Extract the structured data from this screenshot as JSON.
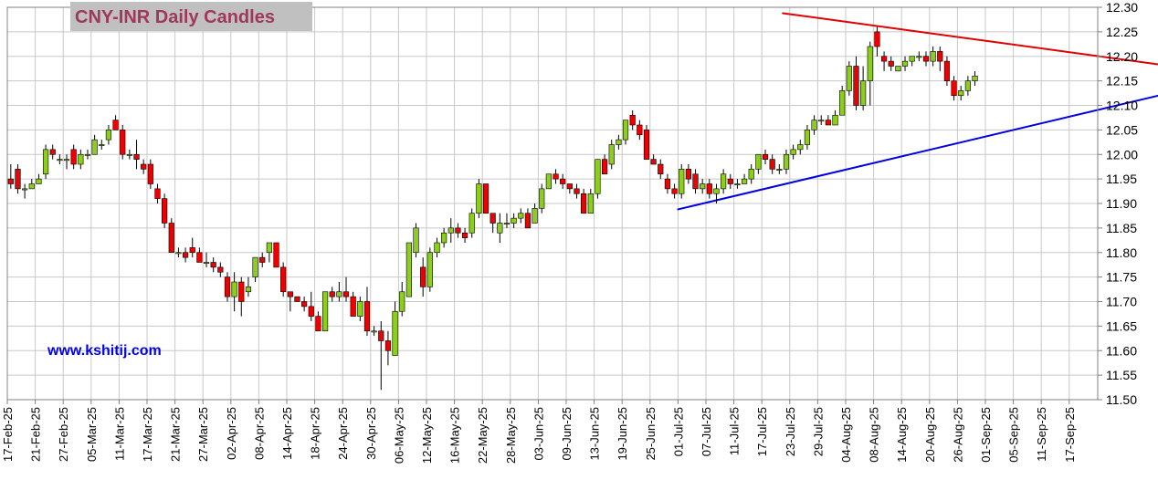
{
  "chart_data": {
    "type": "candlestick",
    "title": "CNY-INR Daily Candles",
    "watermark": "www.kshitij.com",
    "ylim": [
      11.5,
      12.3
    ],
    "y_ticks": [
      "11.50",
      "11.55",
      "11.60",
      "11.65",
      "11.70",
      "11.75",
      "11.80",
      "11.85",
      "11.90",
      "11.95",
      "12.00",
      "12.05",
      "12.10",
      "12.15",
      "12.20",
      "12.25",
      "12.30"
    ],
    "x_labels": [
      "17-Feb-25",
      "21-Feb-25",
      "27-Feb-25",
      "05-Mar-25",
      "11-Mar-25",
      "17-Mar-25",
      "21-Mar-25",
      "27-Mar-25",
      "02-Apr-25",
      "08-Apr-25",
      "14-Apr-25",
      "18-Apr-25",
      "24-Apr-25",
      "30-Apr-25",
      "06-May-25",
      "12-May-25",
      "16-May-25",
      "22-May-25",
      "28-May-25",
      "03-Jun-25",
      "09-Jun-25",
      "13-Jun-25",
      "19-Jun-25",
      "25-Jun-25",
      "01-Jul-25",
      "07-Jul-25",
      "11-Jul-25",
      "17-Jul-25",
      "23-Jul-25",
      "29-Jul-25",
      "04-Aug-25",
      "08-Aug-25",
      "14-Aug-25",
      "20-Aug-25",
      "26-Aug-25",
      "01-Sep-25",
      "05-Sep-25",
      "11-Sep-25",
      "17-Sep-25"
    ],
    "slots_per_label": 4,
    "candles": [
      [
        11.95,
        11.98,
        11.93,
        11.94
      ],
      [
        11.97,
        11.98,
        11.92,
        11.93
      ],
      [
        11.93,
        11.94,
        11.91,
        11.93
      ],
      [
        11.93,
        11.95,
        11.93,
        11.94
      ],
      [
        11.94,
        11.96,
        11.94,
        11.95
      ],
      [
        11.96,
        12.02,
        11.95,
        12.01
      ],
      [
        12.01,
        12.02,
        11.99,
        12.0
      ],
      [
        11.99,
        12.0,
        11.98,
        11.99
      ],
      [
        11.99,
        12.0,
        11.97,
        11.99
      ],
      [
        12.01,
        12.02,
        11.97,
        11.98
      ],
      [
        11.98,
        12.01,
        11.97,
        12.0
      ],
      [
        12.0,
        12.01,
        11.99,
        12.0
      ],
      [
        12.0,
        12.04,
        12.0,
        12.03
      ],
      [
        12.02,
        12.03,
        12.01,
        12.02
      ],
      [
        12.03,
        12.06,
        12.02,
        12.05
      ],
      [
        12.07,
        12.08,
        12.05,
        12.05
      ],
      [
        12.05,
        12.06,
        11.99,
        12.0
      ],
      [
        12.0,
        12.01,
        11.99,
        12.0
      ],
      [
        12.0,
        12.03,
        11.97,
        11.99
      ],
      [
        11.98,
        11.99,
        11.96,
        11.97
      ],
      [
        11.98,
        11.99,
        11.93,
        11.94
      ],
      [
        11.93,
        11.94,
        11.9,
        11.91
      ],
      [
        11.91,
        11.92,
        11.85,
        11.86
      ],
      [
        11.86,
        11.87,
        11.8,
        11.8
      ],
      [
        11.8,
        11.81,
        11.79,
        11.8
      ],
      [
        11.8,
        11.81,
        11.78,
        11.79
      ],
      [
        11.81,
        11.83,
        11.79,
        11.8
      ],
      [
        11.8,
        11.81,
        11.78,
        11.78
      ],
      [
        11.78,
        11.8,
        11.77,
        11.78
      ],
      [
        11.78,
        11.79,
        11.76,
        11.77
      ],
      [
        11.77,
        11.78,
        11.75,
        11.76
      ],
      [
        11.75,
        11.76,
        11.7,
        11.71
      ],
      [
        11.71,
        11.76,
        11.68,
        11.74
      ],
      [
        11.74,
        11.75,
        11.67,
        11.7
      ],
      [
        11.72,
        11.75,
        11.71,
        11.73
      ],
      [
        11.75,
        11.79,
        11.74,
        11.79
      ],
      [
        11.79,
        11.8,
        11.77,
        11.78
      ],
      [
        11.8,
        11.82,
        11.78,
        11.82
      ],
      [
        11.82,
        11.82,
        11.77,
        11.77
      ],
      [
        11.77,
        11.78,
        11.71,
        11.72
      ],
      [
        11.72,
        11.72,
        11.68,
        11.71
      ],
      [
        11.71,
        11.71,
        11.7,
        11.7
      ],
      [
        11.7,
        11.71,
        11.68,
        11.69
      ],
      [
        11.69,
        11.72,
        11.66,
        11.67
      ],
      [
        11.67,
        11.68,
        11.64,
        11.64
      ],
      [
        11.64,
        11.72,
        11.64,
        11.72
      ],
      [
        11.72,
        11.73,
        11.7,
        11.71
      ],
      [
        11.71,
        11.74,
        11.7,
        11.72
      ],
      [
        11.72,
        11.75,
        11.7,
        11.71
      ],
      [
        11.71,
        11.72,
        11.67,
        11.67
      ],
      [
        11.67,
        11.71,
        11.66,
        11.7
      ],
      [
        11.7,
        11.73,
        11.63,
        11.64
      ],
      [
        11.64,
        11.65,
        11.63,
        11.64
      ],
      [
        11.64,
        11.66,
        11.52,
        11.62
      ],
      [
        11.62,
        11.64,
        11.57,
        11.6
      ],
      [
        11.59,
        11.7,
        11.59,
        11.68
      ],
      [
        11.68,
        11.74,
        11.67,
        11.72
      ],
      [
        11.71,
        11.82,
        11.71,
        11.82
      ],
      [
        11.8,
        11.86,
        11.79,
        11.85
      ],
      [
        11.77,
        11.79,
        11.71,
        11.73
      ],
      [
        11.73,
        11.81,
        11.72,
        11.8
      ],
      [
        11.8,
        11.83,
        11.79,
        11.82
      ],
      [
        11.82,
        11.85,
        11.81,
        11.84
      ],
      [
        11.84,
        11.87,
        11.82,
        11.85
      ],
      [
        11.85,
        11.86,
        11.83,
        11.84
      ],
      [
        11.84,
        11.85,
        11.82,
        11.83
      ],
      [
        11.84,
        11.89,
        11.83,
        11.88
      ],
      [
        11.88,
        11.95,
        11.87,
        11.94
      ],
      [
        11.94,
        11.94,
        11.88,
        11.88
      ],
      [
        11.88,
        11.88,
        11.84,
        11.86
      ],
      [
        11.84,
        11.88,
        11.82,
        11.86
      ],
      [
        11.86,
        11.88,
        11.85,
        11.86
      ],
      [
        11.86,
        11.88,
        11.85,
        11.87
      ],
      [
        11.87,
        11.89,
        11.86,
        11.88
      ],
      [
        11.88,
        11.89,
        11.85,
        11.85
      ],
      [
        11.86,
        11.9,
        11.86,
        11.89
      ],
      [
        11.89,
        11.94,
        11.88,
        11.93
      ],
      [
        11.93,
        11.96,
        11.93,
        11.96
      ],
      [
        11.96,
        11.97,
        11.94,
        11.95
      ],
      [
        11.95,
        11.96,
        11.93,
        11.94
      ],
      [
        11.94,
        11.94,
        11.92,
        11.93
      ],
      [
        11.93,
        11.94,
        11.91,
        11.92
      ],
      [
        11.92,
        11.93,
        11.88,
        11.88
      ],
      [
        11.88,
        11.93,
        11.88,
        11.92
      ],
      [
        11.92,
        11.99,
        11.91,
        11.99
      ],
      [
        11.99,
        12.0,
        11.96,
        11.96
      ],
      [
        11.98,
        12.03,
        11.97,
        12.02
      ],
      [
        12.02,
        12.04,
        12.01,
        12.03
      ],
      [
        12.03,
        12.07,
        12.02,
        12.07
      ],
      [
        12.08,
        12.09,
        12.05,
        12.06
      ],
      [
        12.06,
        12.07,
        12.03,
        12.04
      ],
      [
        12.05,
        12.06,
        11.99,
        11.99
      ],
      [
        11.99,
        12.0,
        11.98,
        11.98
      ],
      [
        11.98,
        11.99,
        11.95,
        11.96
      ],
      [
        11.95,
        11.96,
        11.92,
        11.93
      ],
      [
        11.93,
        11.94,
        11.91,
        11.92
      ],
      [
        11.92,
        11.98,
        11.91,
        11.97
      ],
      [
        11.97,
        11.98,
        11.94,
        11.95
      ],
      [
        11.96,
        11.97,
        11.92,
        11.93
      ],
      [
        11.93,
        11.95,
        11.92,
        11.94
      ],
      [
        11.94,
        11.95,
        11.91,
        11.92
      ],
      [
        11.92,
        11.94,
        11.9,
        11.93
      ],
      [
        11.93,
        11.97,
        11.92,
        11.96
      ],
      [
        11.95,
        11.96,
        11.93,
        11.94
      ],
      [
        11.94,
        11.95,
        11.93,
        11.94
      ],
      [
        11.94,
        11.96,
        11.94,
        11.95
      ],
      [
        11.95,
        11.98,
        11.94,
        11.97
      ],
      [
        11.97,
        12.0,
        11.96,
        12.0
      ],
      [
        12.0,
        12.01,
        11.98,
        11.99
      ],
      [
        11.99,
        12.0,
        11.96,
        11.97
      ],
      [
        11.97,
        11.98,
        11.96,
        11.97
      ],
      [
        11.97,
        12.01,
        11.96,
        12.0
      ],
      [
        12.0,
        12.02,
        11.99,
        12.01
      ],
      [
        12.01,
        12.03,
        12.0,
        12.02
      ],
      [
        12.02,
        12.06,
        12.01,
        12.05
      ],
      [
        12.05,
        12.08,
        12.04,
        12.07
      ],
      [
        12.07,
        12.08,
        12.06,
        12.07
      ],
      [
        12.07,
        12.08,
        12.06,
        12.06
      ],
      [
        12.06,
        12.09,
        12.06,
        12.08
      ],
      [
        12.08,
        12.14,
        12.08,
        12.13
      ],
      [
        12.13,
        12.19,
        12.12,
        12.18
      ],
      [
        12.18,
        12.2,
        12.09,
        12.1
      ],
      [
        12.1,
        12.18,
        12.09,
        12.15
      ],
      [
        12.15,
        12.23,
        12.1,
        12.22
      ],
      [
        12.25,
        12.26,
        12.2,
        12.22
      ],
      [
        12.2,
        12.21,
        12.17,
        12.19
      ],
      [
        12.19,
        12.2,
        12.17,
        12.18
      ],
      [
        12.17,
        12.18,
        12.17,
        12.18
      ],
      [
        12.18,
        12.2,
        12.17,
        12.19
      ],
      [
        12.19,
        12.2,
        12.18,
        12.2
      ],
      [
        12.2,
        12.21,
        12.19,
        12.2
      ],
      [
        12.2,
        12.21,
        12.18,
        12.19
      ],
      [
        12.19,
        12.22,
        12.18,
        12.21
      ],
      [
        12.21,
        12.22,
        12.17,
        12.19
      ],
      [
        12.19,
        12.2,
        12.14,
        12.15
      ],
      [
        12.15,
        12.16,
        12.11,
        12.12
      ],
      [
        12.12,
        12.14,
        12.11,
        12.13
      ],
      [
        12.13,
        12.16,
        12.12,
        12.15
      ],
      [
        12.15,
        12.17,
        12.14,
        12.16
      ]
    ],
    "trendlines": [
      {
        "color": "#e00000",
        "x": [
          111,
          211
        ],
        "y": [
          12.288,
          12.094
        ]
      },
      {
        "color": "#0000e0",
        "x": [
          96,
          211
        ],
        "y": [
          11.888,
          12.276
        ]
      }
    ],
    "colors": {
      "up": "#8ccd1e",
      "down": "#ee0000",
      "grid": "#c8c8c8",
      "title_text": "#a03858",
      "title_bg": "#c0c0c0",
      "watermark": "#0000ee"
    }
  }
}
